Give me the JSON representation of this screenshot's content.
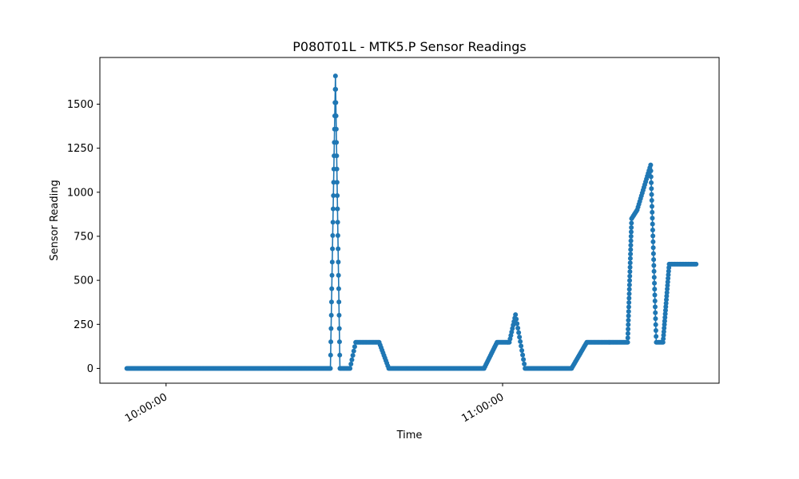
{
  "chart_data": {
    "type": "line",
    "title": "P080T01L - MTK5.P Sensor Readings",
    "xlabel": "Time",
    "ylabel": "Sensor Reading",
    "x_ticks": [
      "10:00:00",
      "11:00:00"
    ],
    "x_tick_minutes": [
      0,
      60
    ],
    "xlim_minutes": [
      -11.8,
      98.6
    ],
    "y_ticks": [
      0,
      250,
      500,
      750,
      1000,
      1250,
      1500
    ],
    "ylim": [
      -84,
      1765
    ],
    "grid": false,
    "series": [
      {
        "color": "#1f77b4",
        "marker": "circle",
        "segments": [
          {
            "t0": -7,
            "t1": 29.3,
            "v0": 0,
            "v1": 0,
            "n": 240
          },
          {
            "t0": 29.3,
            "t1": 30.2,
            "v0": 0,
            "v1": 1660,
            "n": 22
          },
          {
            "t0": 30.2,
            "t1": 31.0,
            "v0": 1660,
            "v1": 0,
            "n": 22
          },
          {
            "t0": 31.0,
            "t1": 32.8,
            "v0": 0,
            "v1": 0,
            "n": 10
          },
          {
            "t0": 32.8,
            "t1": 33.8,
            "v0": 0,
            "v1": 148,
            "n": 6
          },
          {
            "t0": 33.8,
            "t1": 38.0,
            "v0": 148,
            "v1": 148,
            "n": 22
          },
          {
            "t0": 38.0,
            "t1": 39.7,
            "v0": 148,
            "v1": 0,
            "n": 10
          },
          {
            "t0": 39.7,
            "t1": 56.7,
            "v0": 0,
            "v1": 0,
            "n": 110
          },
          {
            "t0": 56.7,
            "t1": 59.0,
            "v0": 0,
            "v1": 148,
            "n": 14
          },
          {
            "t0": 59.0,
            "t1": 61.2,
            "v0": 148,
            "v1": 148,
            "n": 12
          },
          {
            "t0": 61.2,
            "t1": 62.3,
            "v0": 148,
            "v1": 305,
            "n": 8
          },
          {
            "t0": 62.3,
            "t1": 64.0,
            "v0": 305,
            "v1": 0,
            "n": 12
          },
          {
            "t0": 64.0,
            "t1": 72.3,
            "v0": 0,
            "v1": 0,
            "n": 50
          },
          {
            "t0": 72.3,
            "t1": 75.0,
            "v0": 0,
            "v1": 148,
            "n": 16
          },
          {
            "t0": 75.0,
            "t1": 82.3,
            "v0": 148,
            "v1": 148,
            "n": 40
          },
          {
            "t0": 82.3,
            "t1": 83.0,
            "v0": 148,
            "v1": 850,
            "n": 28
          },
          {
            "t0": 83.0,
            "t1": 84.0,
            "v0": 850,
            "v1": 900,
            "n": 6
          },
          {
            "t0": 84.0,
            "t1": 86.4,
            "v0": 900,
            "v1": 1155,
            "n": 16
          },
          {
            "t0": 86.4,
            "t1": 87.4,
            "v0": 1155,
            "v1": 148,
            "n": 30
          },
          {
            "t0": 87.4,
            "t1": 88.6,
            "v0": 148,
            "v1": 148,
            "n": 6
          },
          {
            "t0": 88.6,
            "t1": 89.7,
            "v0": 148,
            "v1": 592,
            "n": 22
          },
          {
            "t0": 89.7,
            "t1": 94.5,
            "v0": 592,
            "v1": 592,
            "n": 24
          }
        ]
      }
    ]
  }
}
